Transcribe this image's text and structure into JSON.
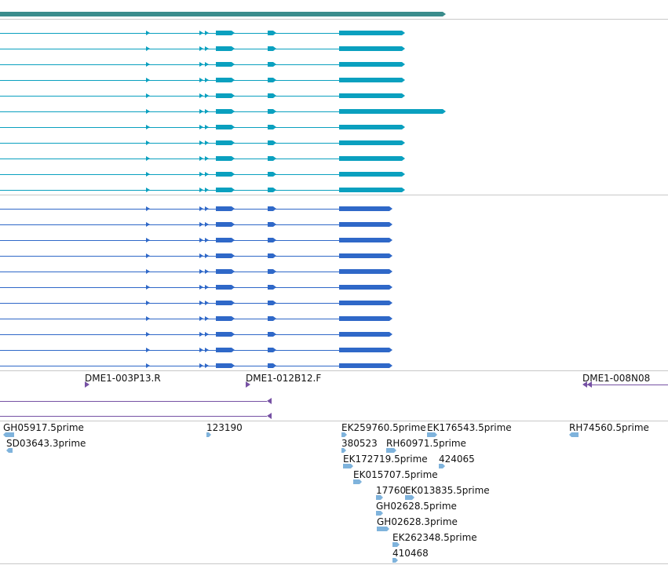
{
  "colors": {
    "gene": "#3a8c8c",
    "transcript_group_a": "#0aa0bf",
    "transcript_group_b": "#2f68c8",
    "clone": "#7651a4",
    "est": "#7fb3dc",
    "separator": "#c8c8c8"
  },
  "tracks": {
    "gene": {
      "feature_count": 1
    },
    "transcripts_a": {
      "transcript_count": 11
    },
    "transcripts_b": {
      "transcript_count": 11
    },
    "clones": {
      "labels": [
        "DME1-003P13.R",
        "DME1-012B12.F",
        "DME1-008N08"
      ]
    },
    "ests": {
      "labels": [
        "GH05917.5prime",
        "SD03643.3prime",
        "123190",
        "EK259760.5prime",
        "EK176543.5prime",
        "RH74560.5prime",
        "380523",
        "RH60971.5prime",
        "EK172719.5prime",
        "424065",
        "EK015707.5prime",
        "17760",
        "EK013835.5prime",
        "GH02628.5prime",
        "GH02628.3prime",
        "EK262348.5prime",
        "410468"
      ]
    }
  }
}
